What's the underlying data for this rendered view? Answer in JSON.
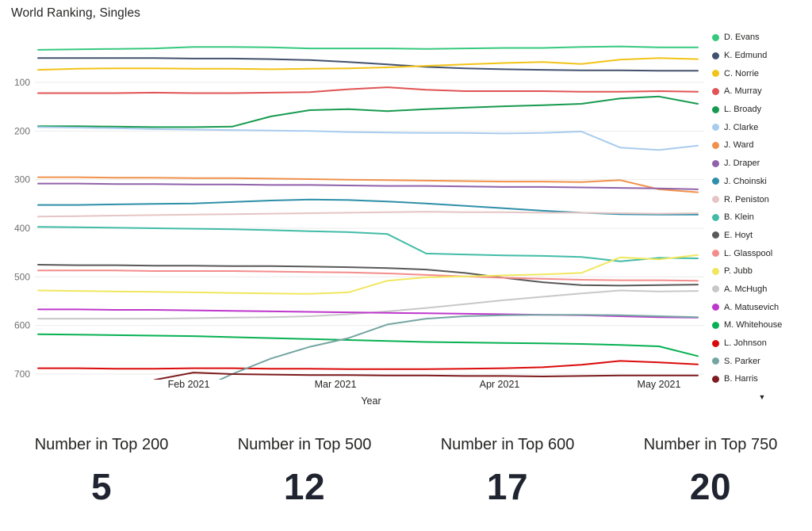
{
  "chart_data": {
    "type": "line",
    "title": "World Ranking, Singles",
    "xlabel": "Year",
    "ylabel": "",
    "x_tick_labels": [
      "Feb 2021",
      "Mar 2021",
      "Apr 2021",
      "May 2021"
    ],
    "x_description": "18 weekly world-ranking snapshots, mid-January 2021 to mid-May 2021",
    "n_points": 18,
    "y_ticks": [
      100,
      200,
      300,
      400,
      500,
      600,
      700
    ],
    "ylim": [
      1,
      720
    ],
    "y_axis_inverted": true,
    "grid": "horizontal-light",
    "legend_position": "right",
    "legend_more_icon": "chevron-down",
    "series": [
      {
        "name": "D. Evans",
        "color": "#36C97E",
        "values": [
          33,
          32,
          31,
          30,
          27,
          27,
          28,
          30,
          30,
          30,
          31,
          30,
          29,
          29,
          27,
          26,
          28,
          28
        ]
      },
      {
        "name": "K. Edmund",
        "color": "#42526E",
        "values": [
          50,
          50,
          50,
          50,
          51,
          51,
          52,
          54,
          58,
          63,
          68,
          71,
          73,
          74,
          75,
          75,
          76,
          76
        ]
      },
      {
        "name": "C. Norrie",
        "color": "#F2C317",
        "values": [
          74,
          72,
          71,
          71,
          72,
          72,
          73,
          72,
          71,
          69,
          66,
          63,
          60,
          58,
          62,
          53,
          50,
          52
        ]
      },
      {
        "name": "A. Murray",
        "color": "#E15354",
        "values": [
          122,
          122,
          122,
          121,
          122,
          122,
          121,
          120,
          114,
          110,
          115,
          118,
          118,
          118,
          119,
          119,
          118,
          119
        ]
      },
      {
        "name": "L. Broady",
        "color": "#179A4F",
        "values": [
          190,
          190,
          191,
          192,
          192,
          191,
          170,
          157,
          155,
          159,
          155,
          152,
          149,
          147,
          144,
          133,
          129,
          144
        ]
      },
      {
        "name": "J. Clarke",
        "color": "#A9CCEE",
        "values": [
          192,
          193,
          194,
          196,
          197,
          198,
          199,
          200,
          202,
          203,
          204,
          204,
          205,
          204,
          201,
          234,
          239,
          230
        ]
      },
      {
        "name": "J. Ward",
        "color": "#F0914B",
        "values": [
          295,
          295,
          296,
          296,
          297,
          297,
          298,
          299,
          300,
          301,
          302,
          303,
          304,
          304,
          305,
          301,
          320,
          326
        ]
      },
      {
        "name": "J. Draper",
        "color": "#9062AA",
        "values": [
          308,
          308,
          309,
          309,
          310,
          310,
          311,
          311,
          312,
          313,
          313,
          314,
          315,
          315,
          316,
          317,
          318,
          320
        ]
      },
      {
        "name": "J. Choinski",
        "color": "#2E8FA9",
        "values": [
          352,
          352,
          351,
          350,
          349,
          346,
          343,
          341,
          342,
          345,
          349,
          354,
          359,
          364,
          368,
          371,
          372,
          372
        ]
      },
      {
        "name": "R. Peniston",
        "color": "#E5C5C5",
        "values": [
          376,
          375,
          374,
          373,
          372,
          371,
          370,
          369,
          368,
          367,
          366,
          367,
          367,
          368,
          368,
          369,
          370,
          369
        ]
      },
      {
        "name": "B. Klein",
        "color": "#42BCA7",
        "values": [
          397,
          398,
          399,
          400,
          401,
          402,
          404,
          406,
          408,
          412,
          452,
          454,
          456,
          457,
          459,
          468,
          461,
          462
        ]
      },
      {
        "name": "E. Hoyt",
        "color": "#595959",
        "values": [
          475,
          476,
          476,
          477,
          477,
          478,
          478,
          479,
          480,
          482,
          485,
          492,
          502,
          511,
          517,
          518,
          517,
          516
        ]
      },
      {
        "name": "L. Glasspool",
        "color": "#F48C8C",
        "values": [
          487,
          487,
          487,
          488,
          488,
          488,
          489,
          490,
          491,
          493,
          496,
          499,
          502,
          504,
          506,
          507,
          507,
          508
        ]
      },
      {
        "name": "P. Jubb",
        "color": "#F0E75F",
        "values": [
          528,
          529,
          530,
          531,
          532,
          533,
          534,
          535,
          532,
          508,
          501,
          499,
          497,
          495,
          492,
          460,
          464,
          455
        ]
      },
      {
        "name": "A. McHugh",
        "color": "#C8C8C8",
        "values": [
          586,
          586,
          586,
          586,
          585,
          584,
          583,
          581,
          577,
          571,
          564,
          556,
          548,
          541,
          534,
          528,
          530,
          529
        ]
      },
      {
        "name": "A. Matusevich",
        "color": "#BE38CC",
        "values": [
          567,
          567,
          568,
          568,
          569,
          570,
          571,
          572,
          573,
          574,
          575,
          576,
          577,
          578,
          579,
          581,
          583,
          584
        ]
      },
      {
        "name": "M. Whitehouse",
        "color": "#07B153",
        "values": [
          618,
          619,
          620,
          621,
          622,
          624,
          626,
          628,
          630,
          632,
          634,
          635,
          636,
          637,
          638,
          640,
          643,
          663
        ]
      },
      {
        "name": "L. Johnson",
        "color": "#DB0B0B",
        "values": [
          688,
          688,
          689,
          689,
          688,
          688,
          689,
          689,
          690,
          690,
          690,
          689,
          688,
          686,
          681,
          673,
          676,
          680
        ]
      },
      {
        "name": "S. Parker",
        "color": "#75A5A3",
        "values": [
          null,
          null,
          null,
          null,
          737,
          700,
          668,
          644,
          626,
          598,
          586,
          581,
          579,
          578,
          578,
          579,
          581,
          583
        ]
      },
      {
        "name": "B. Harris",
        "color": "#7E1B1E",
        "values": [
          null,
          null,
          null,
          712,
          697,
          700,
          701,
          702,
          702,
          703,
          703,
          704,
          704,
          705,
          704,
          703,
          703,
          703
        ]
      }
    ]
  },
  "legend_chevron": "▼",
  "kpis": [
    {
      "label": "Number in Top 200",
      "value": "5"
    },
    {
      "label": "Number in Top 500",
      "value": "12"
    },
    {
      "label": "Number in Top 600",
      "value": "17"
    },
    {
      "label": "Number in Top 750",
      "value": "20"
    }
  ],
  "colors": {
    "background": "#ffffff",
    "gridline": "#ebebeb",
    "y_tick_text": "#6f6f6f",
    "axis_text": "#252423",
    "kpi_value_text": "#1f2430"
  }
}
